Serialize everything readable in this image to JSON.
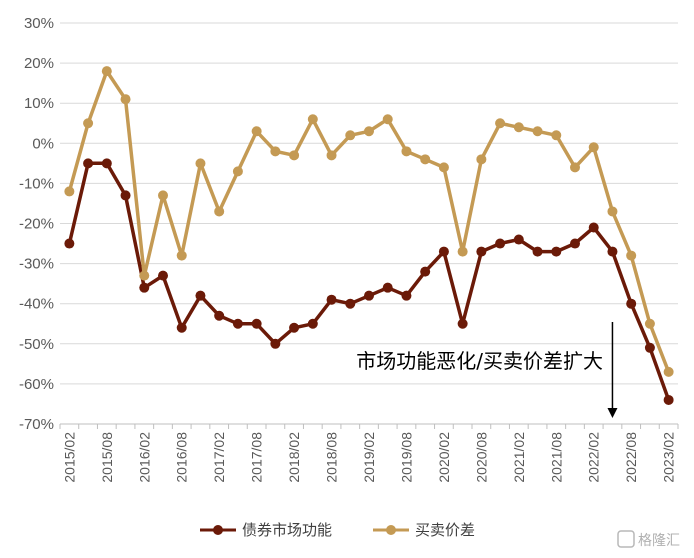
{
  "chart_data": {
    "type": "line",
    "title": "",
    "xlabel": "",
    "ylabel": "",
    "ylim": [
      -70,
      30
    ],
    "yticks": [
      "30%",
      "20%",
      "10%",
      "0%",
      "-10%",
      "-20%",
      "-30%",
      "-40%",
      "-50%",
      "-60%",
      "-70%"
    ],
    "ytick_values": [
      30,
      20,
      10,
      0,
      -10,
      -20,
      -30,
      -40,
      -50,
      -60,
      -70
    ],
    "xtick_labels": [
      "2015/02",
      "2015/08",
      "2016/02",
      "2016/08",
      "2017/02",
      "2017/08",
      "2018/02",
      "2018/08",
      "2019/02",
      "2019/08",
      "2020/02",
      "2020/08",
      "2021/02",
      "2021/08",
      "2022/02",
      "2022/08",
      "2023/02"
    ],
    "x": [
      "2015/02",
      "2015/05",
      "2015/08",
      "2015/11",
      "2016/02",
      "2016/05",
      "2016/08",
      "2016/11",
      "2017/02",
      "2017/05",
      "2017/08",
      "2017/11",
      "2018/02",
      "2018/05",
      "2018/08",
      "2018/11",
      "2019/02",
      "2019/05",
      "2019/08",
      "2019/11",
      "2020/02",
      "2020/05",
      "2020/08",
      "2020/11",
      "2021/02",
      "2021/05",
      "2021/08",
      "2021/11",
      "2022/02",
      "2022/05",
      "2022/08",
      "2022/11",
      "2023/02"
    ],
    "series": [
      {
        "name": "债券市场功能",
        "color": "#6B1A08",
        "values": [
          -25,
          -5,
          -5,
          -13,
          -36,
          -33,
          -46,
          -38,
          -43,
          -45,
          -45,
          -50,
          -46,
          -45,
          -39,
          -40,
          -38,
          -36,
          -38,
          -32,
          -27,
          -45,
          -27,
          -25,
          -24,
          -27,
          -27,
          -25,
          -21,
          -27,
          -40,
          -51,
          -64
        ]
      },
      {
        "name": "买卖价差",
        "color": "#C49A54",
        "values": [
          -12,
          5,
          18,
          11,
          -33,
          -13,
          -28,
          -5,
          -17,
          -7,
          3,
          -2,
          -3,
          6,
          -3,
          2,
          3,
          6,
          -2,
          -4,
          -6,
          -27,
          -4,
          5,
          4,
          3,
          2,
          -6,
          -1,
          -17,
          -28,
          -45,
          -57
        ]
      }
    ],
    "grid": true,
    "legend": "bottom",
    "annotations": [
      {
        "text": "市场功能恶化/买卖价差扩大",
        "arrow": "down",
        "x": "2022/05"
      }
    ]
  },
  "watermark": {
    "text": "格隆汇",
    "icon": "logo-mark"
  }
}
